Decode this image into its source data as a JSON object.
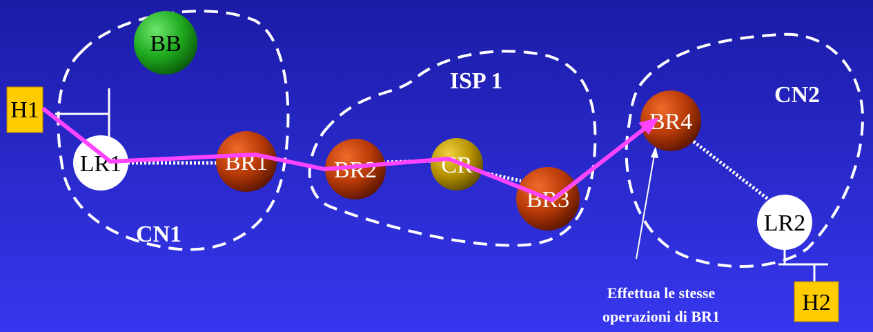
{
  "regions": {
    "cn1": "CN1",
    "isp1": "ISP 1",
    "cn2": "CN2"
  },
  "nodes": {
    "bb": "BB",
    "h1": "H1",
    "lr1": "LR1",
    "br1": "BR1",
    "br2": "BR2",
    "cr": "CR",
    "br3": "BR3",
    "br4": "BR4",
    "lr2": "LR2",
    "h2": "H2"
  },
  "annotation": {
    "line1": "Effettua le stesse",
    "line2": "operazioni di BR1"
  },
  "colors": {
    "background_top": "#1a1aa8",
    "background_bottom": "#3a3af0",
    "path": "#ff44ff",
    "host_box": "#ffcc00",
    "bb_green": "#1faa1f",
    "border_router": "#b83a08",
    "core_router": "#c9a000",
    "local_router": "#ffffff",
    "yellow_segment": "#ffff33"
  }
}
